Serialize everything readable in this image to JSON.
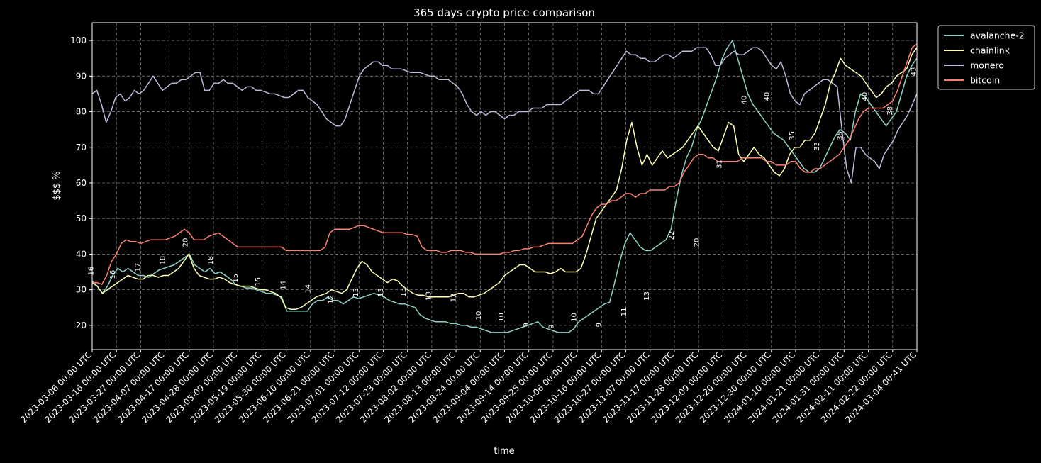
{
  "chart_data": {
    "type": "line",
    "title": "365 days crypto price comparison",
    "xlabel": "time",
    "ylabel": "$$$ %",
    "ylim": [
      13.2,
      105
    ],
    "yticks": [
      20,
      30,
      40,
      50,
      60,
      70,
      80,
      90,
      100
    ],
    "grid": true,
    "legend_position": "outside-top-right",
    "x_tick_labels": [
      "2023-03-06 00:00 UTC",
      "2023-03-16 00:00 UTC",
      "2023-03-27 00:00 UTC",
      "2023-04-07 00:00 UTC",
      "2023-04-17 00:00 UTC",
      "2023-04-28 00:00 UTC",
      "2023-05-09 00:00 UTC",
      "2023-05-19 00:00 UTC",
      "2023-05-30 00:00 UTC",
      "2023-06-10 00:00 UTC",
      "2023-06-21 00:00 UTC",
      "2023-07-01 00:00 UTC",
      "2023-07-12 00:00 UTC",
      "2023-07-23 00:00 UTC",
      "2023-08-02 00:00 UTC",
      "2023-08-13 00:00 UTC",
      "2023-08-24 00:00 UTC",
      "2023-09-04 00:00 UTC",
      "2023-09-14 00:00 UTC",
      "2023-09-25 00:00 UTC",
      "2023-10-06 00:00 UTC",
      "2023-10-16 00:00 UTC",
      "2023-10-27 00:00 UTC",
      "2023-11-07 00:00 UTC",
      "2023-11-17 00:00 UTC",
      "2023-11-28 00:00 UTC",
      "2023-12-09 00:00 UTC",
      "2023-12-20 00:00 UTC",
      "2023-12-30 00:00 UTC",
      "2024-01-10 00:00 UTC",
      "2024-01-21 00:00 UTC",
      "2024-01-31 00:00 UTC",
      "2024-02-11 00:00 UTC",
      "2024-02-22 00:00 UTC",
      "2024-03-04 00:41 UTC"
    ],
    "series": [
      {
        "name": "avalanche-2",
        "color": "#8dd3c7",
        "values": [
          32.5,
          31,
          29,
          31,
          34,
          36,
          35,
          36,
          35,
          34,
          34,
          33.5,
          34.5,
          35.5,
          36,
          36.5,
          37,
          38,
          39,
          40,
          37,
          36,
          35,
          36,
          34.5,
          35,
          34,
          33,
          31.5,
          31,
          30.5,
          30.5,
          30,
          29.5,
          29,
          29,
          28.5,
          28,
          24,
          24,
          24,
          24,
          24,
          26,
          27,
          27,
          28,
          27,
          27,
          26,
          27,
          28,
          27.5,
          28,
          28.5,
          29,
          28.5,
          28,
          27,
          26.5,
          26,
          26,
          25.5,
          25,
          23,
          22,
          21.5,
          21,
          21,
          21,
          20.5,
          20.5,
          20,
          20,
          19.5,
          19.5,
          19,
          18.5,
          18,
          18,
          18,
          18,
          18.5,
          19,
          19.5,
          20,
          20.5,
          21,
          19.5,
          19,
          18.5,
          18,
          18,
          18,
          19,
          21,
          22,
          23,
          24,
          25,
          26,
          26.5,
          32,
          38,
          43,
          46,
          44,
          42,
          41,
          41,
          42,
          43,
          44,
          47,
          55,
          62,
          67,
          70,
          75,
          78,
          82,
          86,
          90,
          95,
          98,
          100,
          95,
          90,
          85,
          82,
          80,
          78,
          76,
          74,
          73,
          72,
          70,
          68,
          66,
          64,
          63,
          63,
          64,
          67,
          70,
          73,
          75,
          74,
          72,
          80,
          85,
          84,
          82,
          80,
          78,
          76,
          78,
          80,
          85,
          90,
          93,
          95
        ]
      },
      {
        "name": "chainlink",
        "color": "#ffffb3",
        "values": [
          32,
          31,
          29,
          30,
          31,
          32,
          33,
          34,
          33.5,
          33,
          33,
          34,
          34,
          33.5,
          34,
          34,
          35,
          36,
          38,
          40,
          36,
          34,
          33.5,
          33,
          33,
          33.5,
          33,
          32,
          31.5,
          31,
          31,
          31,
          30.5,
          30,
          30,
          29.5,
          29,
          28,
          25,
          24.5,
          24.5,
          25,
          26,
          27,
          28,
          28.5,
          29,
          30,
          29.5,
          29,
          30,
          33,
          36,
          38,
          37,
          35,
          34,
          33,
          32,
          33,
          32.5,
          31,
          30,
          29,
          28.5,
          28.5,
          28,
          28,
          28,
          28,
          28,
          28.5,
          29,
          29,
          28,
          28,
          28.5,
          29,
          30,
          31,
          32,
          34,
          35,
          36,
          37,
          37,
          36,
          35,
          35,
          35,
          34.5,
          35,
          36,
          35,
          35,
          35,
          36,
          40,
          45,
          50,
          52,
          54,
          56,
          58,
          64,
          72,
          77,
          70,
          65,
          68,
          65,
          67,
          69,
          67,
          68,
          69,
          70,
          72,
          74,
          76,
          74,
          72,
          70,
          69,
          73,
          77,
          76,
          68,
          66,
          68,
          70,
          68,
          67,
          65,
          63,
          62,
          64,
          68,
          70,
          70,
          72,
          72,
          74,
          78,
          82,
          88,
          91,
          95,
          93,
          92,
          91,
          90,
          88,
          86,
          84,
          85,
          87,
          88,
          90,
          91,
          92,
          96,
          98
        ]
      },
      {
        "name": "monero",
        "color": "#bebada",
        "values": [
          85,
          86,
          82,
          77,
          80,
          84,
          85,
          83,
          84,
          86,
          85,
          86,
          88,
          90,
          88,
          86,
          87,
          88,
          88,
          89,
          89,
          90,
          91,
          91,
          86,
          86,
          88,
          88,
          89,
          88,
          88,
          87,
          86,
          87,
          87,
          86,
          86,
          85.5,
          85,
          85,
          84.5,
          84,
          84,
          85,
          86,
          86,
          84,
          83,
          82,
          80,
          78,
          77,
          76,
          76,
          78,
          82,
          86,
          90,
          92,
          93,
          94,
          94,
          93,
          93,
          92,
          92,
          92,
          91.5,
          91,
          91,
          91,
          90.5,
          90,
          90,
          89,
          89,
          89,
          88,
          87,
          85,
          82,
          80,
          79,
          80,
          79,
          80,
          80,
          79,
          78,
          79,
          79,
          80,
          80,
          80,
          81,
          81,
          81,
          82,
          82,
          82,
          82,
          83,
          84,
          85,
          86,
          86,
          86,
          85,
          85,
          87,
          89,
          91,
          93,
          95,
          97,
          96,
          96,
          95,
          95,
          94,
          94,
          95,
          96,
          96,
          95,
          96,
          97,
          97,
          97,
          98,
          98,
          98,
          96,
          93,
          93,
          95,
          96,
          97,
          96,
          96,
          97,
          98,
          98,
          97,
          95,
          93,
          92,
          94,
          90,
          85,
          83,
          82,
          85,
          86,
          87,
          88,
          89,
          89,
          88,
          87,
          75,
          64,
          60,
          70,
          70,
          68,
          67,
          66,
          64,
          68,
          70,
          72,
          75,
          77,
          79,
          82,
          85
        ]
      },
      {
        "name": "bitcoin",
        "color": "#fb8072",
        "values": [
          32,
          32,
          31.5,
          34,
          38,
          40,
          43,
          44,
          43.5,
          43.5,
          43,
          43.5,
          44,
          44,
          44,
          44,
          44.5,
          45,
          46,
          47,
          46,
          44,
          44,
          44,
          45,
          45.5,
          46,
          45,
          44,
          43,
          42,
          42,
          42,
          42,
          42,
          42,
          42,
          42,
          42,
          42,
          41,
          41,
          41,
          41,
          41,
          41,
          41,
          41,
          42,
          46,
          47,
          47,
          47,
          47,
          47.5,
          48,
          48,
          47.5,
          47,
          46.5,
          46,
          46,
          46,
          46,
          46,
          45.5,
          45.5,
          45,
          42,
          41,
          41,
          41,
          40.5,
          40.5,
          41,
          41,
          41,
          40.5,
          40.5,
          40,
          40,
          40,
          40,
          40,
          40,
          40.5,
          40.5,
          41,
          41,
          41.5,
          41.5,
          42,
          42,
          42.5,
          43,
          43,
          43,
          43,
          43,
          43,
          44,
          45,
          48,
          51,
          53,
          54,
          54,
          55,
          55,
          56,
          57,
          57,
          56,
          57,
          57,
          58,
          58,
          58,
          58,
          59,
          59,
          60,
          63,
          65,
          67,
          68,
          68,
          67,
          67,
          66,
          66,
          66,
          66,
          66,
          67,
          67,
          67,
          67,
          67,
          66,
          66,
          65,
          65,
          65,
          66,
          66,
          64,
          63,
          63,
          64,
          64,
          65,
          66,
          67,
          68,
          70,
          72,
          75,
          78,
          80,
          81,
          81,
          81,
          81,
          82,
          83,
          86,
          90,
          94,
          98,
          99
        ]
      }
    ],
    "annotations": [
      {
        "x": 0.5,
        "y": 34,
        "text": "16"
      },
      {
        "x": 10,
        "y": 33,
        "text": "16"
      },
      {
        "x": 21,
        "y": 35,
        "text": "17"
      },
      {
        "x": 32,
        "y": 37,
        "text": "18"
      },
      {
        "x": 42,
        "y": 42,
        "text": "20"
      },
      {
        "x": 53,
        "y": 37,
        "text": "18"
      },
      {
        "x": 64,
        "y": 32,
        "text": "15"
      },
      {
        "x": 74,
        "y": 31,
        "text": "15"
      },
      {
        "x": 85,
        "y": 30,
        "text": "14"
      },
      {
        "x": 96,
        "y": 29,
        "text": "14"
      },
      {
        "x": 106,
        "y": 26,
        "text": "12"
      },
      {
        "x": 117,
        "y": 28,
        "text": "13"
      },
      {
        "x": 128,
        "y": 28,
        "text": "13"
      },
      {
        "x": 138,
        "y": 28,
        "text": "13"
      },
      {
        "x": 149,
        "y": 27,
        "text": "13"
      },
      {
        "x": 160,
        "y": 26.5,
        "text": "12"
      },
      {
        "x": 171,
        "y": 21.5,
        "text": "10"
      },
      {
        "x": 181,
        "y": 21,
        "text": "10"
      },
      {
        "x": 192,
        "y": 19.5,
        "text": "9"
      },
      {
        "x": 203,
        "y": 19,
        "text": "9"
      },
      {
        "x": 213,
        "y": 21,
        "text": "10"
      },
      {
        "x": 224,
        "y": 19.5,
        "text": "9"
      },
      {
        "x": 235,
        "y": 22.5,
        "text": "11"
      },
      {
        "x": 245,
        "y": 27,
        "text": "13"
      },
      {
        "x": 256,
        "y": 44,
        "text": "22"
      },
      {
        "x": 267,
        "y": 42,
        "text": "20"
      },
      {
        "x": 277,
        "y": 64,
        "text": "31"
      },
      {
        "x": 288,
        "y": 82,
        "text": "40"
      },
      {
        "x": 298,
        "y": 83,
        "text": "40"
      },
      {
        "x": 309,
        "y": 72,
        "text": "35"
      },
      {
        "x": 320,
        "y": 69,
        "text": "33"
      },
      {
        "x": 330,
        "y": 72,
        "text": "35"
      },
      {
        "x": 341,
        "y": 83,
        "text": "40"
      },
      {
        "x": 352,
        "y": 79,
        "text": "38"
      },
      {
        "x": 362.5,
        "y": 90,
        "text": "43"
      }
    ]
  }
}
